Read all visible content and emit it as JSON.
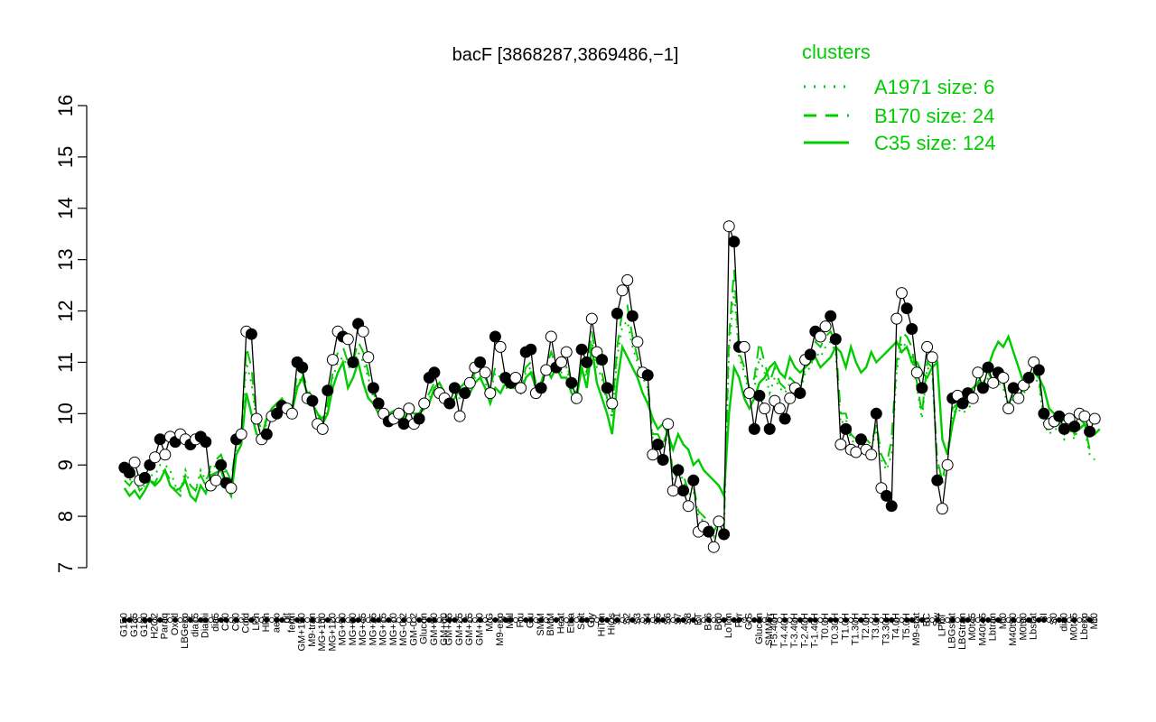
{
  "chart_data": {
    "type": "line",
    "title": "bacF [3868287,3869486,−1]",
    "ylim": [
      7,
      16
    ],
    "yticks": [
      7,
      8,
      9,
      10,
      11,
      12,
      13,
      14,
      15,
      16
    ],
    "grid": false,
    "legend": {
      "placement": "top-right",
      "title": "clusters",
      "entries": [
        {
          "label": "A1971 size: 6",
          "style": "dotted",
          "color": "#00cc00"
        },
        {
          "label": "B170 size: 24",
          "style": "dashed",
          "color": "#00cc00"
        },
        {
          "label": "C35 size: 124",
          "style": "solid",
          "color": "#00cc00"
        }
      ]
    },
    "x_labels": [
      "G150",
      "G135",
      "G180",
      "H2O2",
      "Paraq",
      "Oxctl",
      "LBGexp",
      "dia15",
      "Diami",
      "dia5",
      "C30",
      "C90",
      "Cold",
      "LPh",
      "HPh",
      "aero",
      "nit",
      "ferm",
      "GM+150",
      "M9-tran",
      "MG+150",
      "MG+120",
      "MG+90",
      "MG+60",
      "MG+45",
      "MG+25",
      "MG+15",
      "MG+10",
      "MG-0.2",
      "GM-0.2",
      "Glucon",
      "GM+90",
      "GM+60",
      "GM+45",
      "GM+25",
      "GM+15",
      "GM+10",
      "M/G",
      "M9-exp",
      "Mal",
      "Fru",
      "Glu",
      "SMM",
      "BMM",
      "Heat",
      "Etha",
      "Salt",
      "Gly",
      "HiTm",
      "HiOs",
      "S1",
      "S2",
      "S3",
      "S4",
      "S5",
      "S6",
      "S7",
      "S8",
      "BT",
      "B36",
      "B60",
      "LoTm",
      "Pyr",
      "G/S",
      "Glucon",
      "SMMPr",
      "T-5.40H",
      "T-4.40H",
      "T-3.40H",
      "T-2.40H",
      "T-1.40H",
      "T0.0H",
      "T0.30H",
      "T1.0H",
      "T1.30H",
      "T2.0H",
      "T3.0H",
      "T3.30H",
      "T4.0H",
      "T5.0H",
      "M9-stat",
      "BC",
      "Sw",
      "LPhT",
      "LBGstat",
      "LBGtran",
      "M0t45",
      "M40t45",
      "Lbtran",
      "Mt0",
      "M40t90",
      "M0t90",
      "Lbstat",
      "BI",
      "S0",
      "dia0",
      "M0t45",
      "Lbexp",
      "Mt0"
    ],
    "series": [
      {
        "name": "",
        "style": "points",
        "values": [
          8.95,
          8.85,
          9.05,
          8.7,
          8.75,
          9.0,
          9.15,
          9.5,
          9.2,
          9.55,
          9.45,
          9.6,
          9.5,
          9.4,
          9.5,
          9.55,
          9.45,
          8.6,
          8.7,
          9.0,
          8.65,
          8.55,
          9.5,
          9.6,
          11.6,
          11.55,
          9.9,
          9.5,
          9.6,
          9.95,
          10.0,
          10.15,
          10.1,
          10.0,
          11.0,
          10.9,
          10.3,
          10.25,
          9.8,
          9.7,
          10.45,
          11.05,
          11.6,
          11.5,
          11.45,
          11.0,
          11.75,
          11.6,
          11.1,
          10.5,
          10.2,
          10.0,
          9.85,
          9.9,
          10.0,
          9.8,
          10.1,
          9.8,
          9.9,
          10.2,
          10.7,
          10.8,
          10.4,
          10.3,
          10.2,
          10.5,
          9.95,
          10.4,
          10.6,
          10.9,
          11.0,
          10.8,
          10.4,
          11.5,
          11.3,
          10.7,
          10.6,
          10.7,
          10.5,
          11.2,
          11.25,
          10.4,
          10.5,
          10.85,
          11.5,
          10.9,
          11.0,
          11.2,
          10.6,
          10.3,
          11.25,
          11.0,
          11.85,
          11.2,
          11.05,
          10.5,
          10.2,
          11.95,
          12.4,
          12.6,
          11.9,
          11.4,
          10.8,
          10.75,
          9.2,
          9.4,
          9.1,
          9.8,
          8.5,
          8.9,
          8.5,
          8.2,
          8.7,
          7.7,
          7.8,
          7.7,
          7.4,
          7.9,
          7.65,
          13.65,
          13.35,
          11.3,
          11.3,
          10.4,
          9.7,
          10.35,
          10.1,
          9.7,
          10.25,
          10.1,
          9.9,
          10.3,
          10.5,
          10.4,
          11.05,
          11.15,
          11.6,
          11.5,
          11.7,
          11.9,
          11.45,
          9.4,
          9.7,
          9.3,
          9.25,
          9.5,
          9.3,
          9.2,
          10.0,
          8.55,
          8.4,
          8.2,
          11.85,
          12.35,
          12.05,
          11.65,
          10.8,
          10.5,
          11.3,
          11.1,
          8.7,
          8.15,
          9.0,
          10.3,
          10.35,
          10.2,
          10.4,
          10.3,
          10.8,
          10.5,
          10.9,
          10.6,
          10.8,
          10.7,
          10.1,
          10.5,
          10.3,
          10.55,
          10.7,
          11.0,
          10.85,
          10.0,
          9.8,
          9.85,
          9.95,
          9.7,
          9.9,
          9.75,
          10.0,
          9.95,
          9.65,
          9.9
        ]
      },
      {
        "name": "",
        "style": "solid",
        "values": [
          8.55,
          8.4,
          8.5,
          8.35,
          8.5,
          8.7,
          8.6,
          8.7,
          8.9,
          8.6,
          8.5,
          8.55,
          8.7,
          8.4,
          8.3,
          8.6,
          8.45,
          8.8,
          8.85,
          8.9,
          8.6,
          8.4,
          9.2,
          9.4,
          10.4,
          10.0,
          9.6,
          9.55,
          9.9,
          10.1,
          10.2,
          10.15,
          10.0,
          10.05,
          10.5,
          10.7,
          10.4,
          10.2,
          10.0,
          9.8,
          10.0,
          10.5,
          10.8,
          11.0,
          10.5,
          10.7,
          11.0,
          10.6,
          10.3,
          10.2,
          10.0,
          9.95,
          10.0,
          10.05,
          10.0,
          9.9,
          10.05,
          10.0,
          10.0,
          10.1,
          10.2,
          10.5,
          10.6,
          10.4,
          10.2,
          10.3,
          10.5,
          10.6,
          10.4,
          10.6,
          10.7,
          10.5,
          10.2,
          10.5,
          10.4,
          10.6,
          10.5,
          10.5,
          10.4,
          10.7,
          10.8,
          10.5,
          10.6,
          10.9,
          10.7,
          10.9,
          10.7,
          10.7,
          10.4,
          10.3,
          10.9,
          10.5,
          11.3,
          10.6,
          10.3,
          10.0,
          9.6,
          10.6,
          11.3,
          11.1,
          10.9,
          10.7,
          10.4,
          10.2,
          9.9,
          9.7,
          9.8,
          9.6,
          9.3,
          9.6,
          9.4,
          9.3,
          9.0,
          9.1,
          8.9,
          8.8,
          8.7,
          8.6,
          8.4,
          10.0,
          10.9,
          10.7,
          10.3,
          10.1,
          10.3,
          10.6,
          10.7,
          10.9,
          11.0,
          10.8,
          10.7,
          11.1,
          10.9,
          10.8,
          10.9,
          11.0,
          11.1,
          10.9,
          11.0,
          11.1,
          11.3,
          11.2,
          10.9,
          11.3,
          11.0,
          10.8,
          10.9,
          11.2,
          11.0,
          11.1,
          11.2,
          11.3,
          11.4,
          11.2,
          11.3,
          11.0,
          11.0,
          10.8,
          10.7,
          10.9,
          11.0,
          9.5,
          9.2,
          9.8,
          10.2,
          10.3,
          10.4,
          10.5,
          10.6,
          10.8,
          10.9,
          11.2,
          11.4,
          11.3,
          11.5,
          11.2,
          10.9,
          10.6,
          10.7,
          10.8,
          10.7,
          10.5,
          10.1,
          10.0,
          9.8,
          9.9,
          9.9,
          9.8,
          9.7,
          9.8,
          9.7,
          9.6,
          9.7
        ]
      },
      {
        "name": "",
        "style": "dashed",
        "values": [
          8.7,
          8.6,
          8.75,
          8.5,
          8.6,
          8.7,
          8.65,
          8.85,
          8.9,
          8.7,
          8.5,
          8.4,
          8.8,
          8.6,
          8.5,
          8.8,
          8.6,
          9.0,
          9.1,
          9.2,
          8.9,
          8.7,
          9.4,
          9.6,
          11.3,
          10.9,
          9.9,
          9.7,
          9.9,
          10.1,
          10.2,
          10.3,
          10.1,
          10.1,
          10.8,
          10.8,
          10.5,
          10.3,
          10.0,
          9.9,
          10.2,
          10.8,
          11.2,
          11.3,
          11.0,
          11.0,
          11.4,
          11.2,
          10.8,
          10.4,
          10.2,
          10.0,
          9.9,
          10.0,
          10.1,
          9.9,
          10.1,
          10.0,
          10.0,
          10.2,
          10.4,
          10.6,
          10.5,
          10.4,
          10.3,
          10.4,
          10.4,
          10.5,
          10.5,
          10.8,
          10.8,
          10.7,
          10.5,
          10.9,
          10.8,
          10.6,
          10.6,
          10.6,
          10.5,
          10.9,
          11.0,
          10.6,
          10.6,
          10.9,
          11.2,
          10.9,
          10.9,
          11.0,
          10.6,
          10.4,
          11.0,
          10.8,
          11.6,
          11.0,
          10.8,
          10.3,
          10.0,
          11.3,
          12.0,
          12.1,
          11.5,
          11.1,
          10.8,
          10.6,
          9.6,
          9.6,
          9.4,
          9.7,
          8.8,
          9.0,
          8.8,
          8.5,
          8.6,
          8.1,
          8.0,
          7.9,
          7.7,
          7.9,
          7.8,
          11.5,
          12.8,
          11.2,
          10.9,
          10.5,
          10.7,
          11.4,
          11.0,
          10.6,
          10.9,
          10.6,
          10.5,
          10.7,
          10.6,
          10.5,
          10.9,
          11.0,
          11.4,
          11.3,
          11.5,
          11.6,
          11.4,
          10.0,
          10.0,
          9.6,
          9.5,
          9.6,
          9.5,
          9.4,
          9.8,
          9.2,
          9.0,
          9.5,
          11.0,
          11.6,
          11.5,
          11.3,
          10.6,
          10.0,
          11.0,
          10.9,
          9.1,
          8.7,
          9.2,
          10.1,
          10.2,
          10.1,
          10.2,
          10.3,
          10.6,
          10.6,
          10.8,
          10.6,
          10.7,
          10.6,
          10.2,
          10.4,
          10.3,
          10.5,
          10.6,
          10.8,
          10.7,
          9.9,
          9.7,
          9.8,
          9.8,
          9.6,
          9.8,
          9.6,
          9.9,
          9.8,
          9.3,
          9.2
        ]
      },
      {
        "name": "",
        "style": "dotted",
        "values": [
          8.8,
          8.7,
          8.8,
          8.5,
          8.6,
          8.8,
          8.8,
          9.0,
          9.0,
          8.9,
          8.6,
          8.5,
          8.9,
          8.6,
          8.5,
          8.9,
          8.7,
          8.9,
          9.0,
          9.1,
          8.8,
          8.6,
          9.3,
          9.5,
          11.0,
          10.6,
          9.8,
          9.6,
          9.8,
          10.0,
          10.1,
          10.2,
          10.0,
          10.0,
          10.6,
          10.7,
          10.4,
          10.2,
          10.0,
          9.8,
          10.1,
          10.7,
          11.0,
          11.1,
          10.9,
          10.9,
          11.2,
          11.0,
          10.7,
          10.3,
          10.1,
          9.9,
          9.8,
          9.9,
          10.0,
          9.8,
          10.0,
          9.9,
          9.9,
          10.1,
          10.3,
          10.5,
          10.4,
          10.3,
          10.2,
          10.3,
          10.3,
          10.4,
          10.4,
          10.7,
          10.7,
          10.6,
          10.4,
          10.8,
          10.7,
          10.5,
          10.5,
          10.5,
          10.4,
          10.8,
          10.9,
          10.5,
          10.5,
          10.8,
          11.0,
          10.8,
          10.8,
          10.9,
          10.5,
          10.3,
          10.9,
          10.7,
          11.4,
          10.9,
          10.7,
          10.2,
          9.9,
          11.1,
          11.7,
          11.8,
          11.3,
          11.0,
          10.7,
          10.5,
          9.5,
          9.5,
          9.3,
          9.6,
          8.7,
          8.9,
          8.7,
          8.4,
          8.5,
          8.0,
          7.9,
          7.8,
          7.6,
          7.8,
          7.7,
          11.2,
          12.4,
          11.1,
          10.8,
          10.4,
          10.5,
          11.1,
          10.8,
          10.4,
          10.7,
          10.5,
          10.4,
          10.6,
          10.5,
          10.4,
          10.8,
          10.9,
          11.2,
          11.1,
          11.3,
          11.4,
          11.2,
          9.8,
          9.9,
          9.5,
          9.4,
          9.5,
          9.4,
          9.3,
          9.7,
          9.1,
          8.9,
          9.2,
          10.8,
          11.4,
          11.3,
          11.1,
          10.5,
          9.9,
          10.9,
          10.8,
          9.0,
          8.6,
          9.1,
          10.0,
          10.1,
          10.0,
          10.1,
          10.2,
          10.5,
          10.5,
          10.7,
          10.5,
          10.6,
          10.5,
          10.1,
          10.3,
          10.2,
          10.4,
          10.5,
          10.7,
          10.6,
          9.8,
          9.6,
          9.7,
          9.7,
          9.5,
          9.7,
          9.5,
          9.8,
          9.7,
          9.2,
          9.1
        ]
      }
    ],
    "colors": {
      "points_outline": "#000000",
      "filled_point": "#000000",
      "open_point": "#ffffff",
      "cluster_lines": "#00cc00"
    }
  }
}
